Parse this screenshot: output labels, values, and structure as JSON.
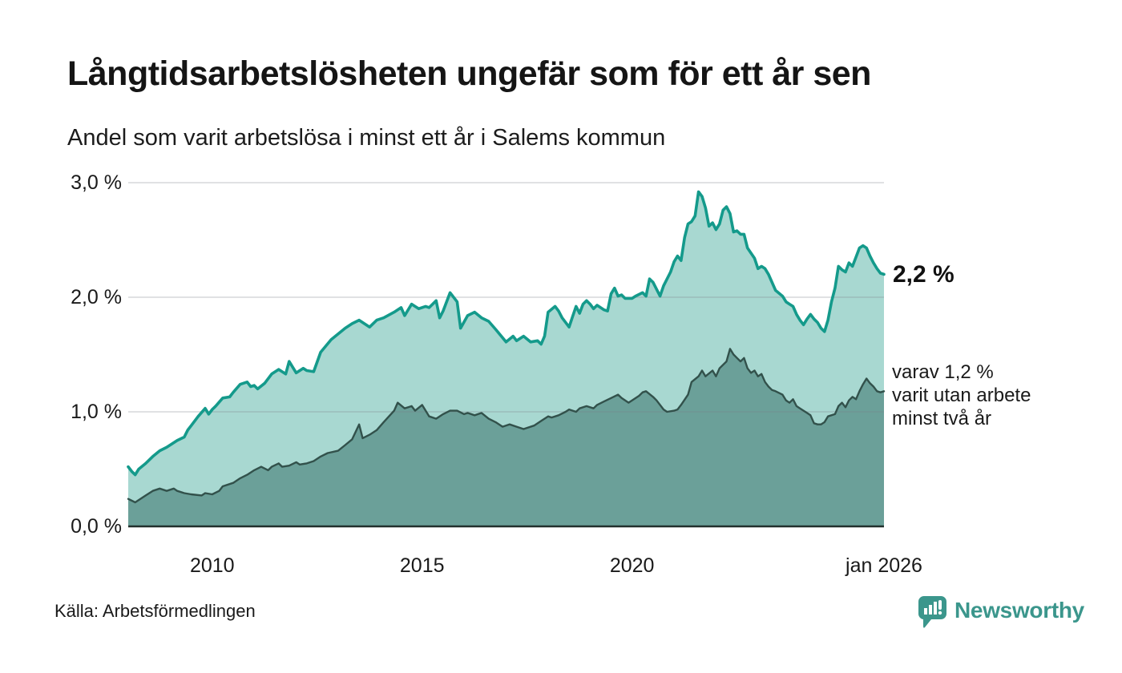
{
  "title": "Långtidsarbetslösheten ungefär som för ett år sen",
  "subtitle": "Andel som varit arbetslösa i minst ett år i Salems kommun",
  "source": "Källa: Arbetsförmedlingen",
  "logo": {
    "text": "Newsworthy",
    "color": "#3b968c"
  },
  "annotations": {
    "end_value": "2,2 %",
    "secondary": [
      "varav 1,2 %",
      "varit utan arbete",
      "minst två år"
    ]
  },
  "y_axis": {
    "labels": [
      "3,0 %",
      "2,0 %",
      "1,0 %",
      "0,0 %"
    ],
    "values": [
      3,
      2,
      1,
      0
    ]
  },
  "x_axis": {
    "ticks": [
      {
        "label": "2010",
        "month": 24
      },
      {
        "label": "2015",
        "month": 84
      },
      {
        "label": "2020",
        "month": 144
      },
      {
        "label": "jan 2026",
        "month": 216
      }
    ]
  },
  "chart_data": {
    "type": "area",
    "title": "Långtidsarbetslösheten ungefär som för ett år sen",
    "subtitle": "Andel som varit arbetslösa i minst ett år i Salems kommun",
    "x_unit": "months since Jan 2008, monthly through Jan 2026",
    "x_range": [
      0,
      216
    ],
    "ylim": [
      0,
      3.0
    ],
    "grid": true,
    "colors": {
      "line_primary": "#149a8b",
      "fill_primary": "#a8d8d1",
      "line_secondary": "#32514b",
      "fill_secondary": "#6ba099",
      "gridline": "#e3e3e8",
      "axis_line": "#22302d"
    },
    "series": [
      {
        "name": "Arbetslösa minst ett år",
        "end_label": "2,2 %",
        "points": [
          [
            0,
            0.52
          ],
          [
            1,
            0.48
          ],
          [
            2,
            0.45
          ],
          [
            3,
            0.5
          ],
          [
            5,
            0.55
          ],
          [
            7,
            0.61
          ],
          [
            9,
            0.66
          ],
          [
            11,
            0.69
          ],
          [
            14,
            0.75
          ],
          [
            16,
            0.78
          ],
          [
            17,
            0.84
          ],
          [
            18,
            0.88
          ],
          [
            20,
            0.96
          ],
          [
            22,
            1.03
          ],
          [
            23,
            0.98
          ],
          [
            24,
            1.02
          ],
          [
            25,
            1.05
          ],
          [
            27,
            1.12
          ],
          [
            29,
            1.13
          ],
          [
            30,
            1.17
          ],
          [
            32,
            1.24
          ],
          [
            34,
            1.26
          ],
          [
            35,
            1.22
          ],
          [
            36,
            1.23
          ],
          [
            37,
            1.2
          ],
          [
            39,
            1.25
          ],
          [
            41,
            1.33
          ],
          [
            43,
            1.37
          ],
          [
            45,
            1.33
          ],
          [
            46,
            1.44
          ],
          [
            48,
            1.34
          ],
          [
            50,
            1.38
          ],
          [
            51,
            1.36
          ],
          [
            53,
            1.35
          ],
          [
            55,
            1.52
          ],
          [
            58,
            1.63
          ],
          [
            62,
            1.73
          ],
          [
            64,
            1.77
          ],
          [
            66,
            1.8
          ],
          [
            69,
            1.74
          ],
          [
            71,
            1.8
          ],
          [
            73,
            1.82
          ],
          [
            76,
            1.87
          ],
          [
            78,
            1.91
          ],
          [
            79,
            1.84
          ],
          [
            81,
            1.94
          ],
          [
            83,
            1.9
          ],
          [
            85,
            1.92
          ],
          [
            86,
            1.91
          ],
          [
            88,
            1.97
          ],
          [
            89,
            1.82
          ],
          [
            90,
            1.88
          ],
          [
            92,
            2.04
          ],
          [
            94,
            1.96
          ],
          [
            95,
            1.73
          ],
          [
            97,
            1.84
          ],
          [
            99,
            1.87
          ],
          [
            101,
            1.82
          ],
          [
            103,
            1.79
          ],
          [
            105,
            1.72
          ],
          [
            108,
            1.61
          ],
          [
            110,
            1.66
          ],
          [
            111,
            1.62
          ],
          [
            113,
            1.66
          ],
          [
            115,
            1.61
          ],
          [
            117,
            1.62
          ],
          [
            118,
            1.59
          ],
          [
            119,
            1.66
          ],
          [
            120,
            1.87
          ],
          [
            122,
            1.92
          ],
          [
            123,
            1.88
          ],
          [
            124,
            1.82
          ],
          [
            126,
            1.74
          ],
          [
            127,
            1.83
          ],
          [
            128,
            1.92
          ],
          [
            129,
            1.86
          ],
          [
            130,
            1.94
          ],
          [
            131,
            1.97
          ],
          [
            132,
            1.94
          ],
          [
            133,
            1.9
          ],
          [
            134,
            1.93
          ],
          [
            136,
            1.89
          ],
          [
            137,
            1.88
          ],
          [
            138,
            2.03
          ],
          [
            139,
            2.08
          ],
          [
            140,
            2.01
          ],
          [
            141,
            2.02
          ],
          [
            142,
            1.99
          ],
          [
            144,
            1.99
          ],
          [
            145,
            2.01
          ],
          [
            147,
            2.04
          ],
          [
            148,
            2.01
          ],
          [
            149,
            2.16
          ],
          [
            150,
            2.13
          ],
          [
            152,
            2.01
          ],
          [
            153,
            2.1
          ],
          [
            155,
            2.22
          ],
          [
            156,
            2.31
          ],
          [
            157,
            2.36
          ],
          [
            158,
            2.32
          ],
          [
            159,
            2.52
          ],
          [
            160,
            2.64
          ],
          [
            161,
            2.66
          ],
          [
            162,
            2.71
          ],
          [
            163,
            2.92
          ],
          [
            164,
            2.88
          ],
          [
            165,
            2.78
          ],
          [
            166,
            2.62
          ],
          [
            167,
            2.65
          ],
          [
            168,
            2.59
          ],
          [
            169,
            2.64
          ],
          [
            170,
            2.76
          ],
          [
            171,
            2.79
          ],
          [
            172,
            2.73
          ],
          [
            173,
            2.57
          ],
          [
            174,
            2.58
          ],
          [
            175,
            2.55
          ],
          [
            176,
            2.55
          ],
          [
            177,
            2.43
          ],
          [
            179,
            2.34
          ],
          [
            180,
            2.25
          ],
          [
            181,
            2.27
          ],
          [
            182,
            2.25
          ],
          [
            183,
            2.2
          ],
          [
            184,
            2.13
          ],
          [
            185,
            2.06
          ],
          [
            187,
            2.01
          ],
          [
            188,
            1.96
          ],
          [
            189,
            1.94
          ],
          [
            190,
            1.92
          ],
          [
            191,
            1.85
          ],
          [
            192,
            1.8
          ],
          [
            193,
            1.76
          ],
          [
            194,
            1.81
          ],
          [
            195,
            1.85
          ],
          [
            196,
            1.81
          ],
          [
            197,
            1.78
          ],
          [
            198,
            1.73
          ],
          [
            199,
            1.7
          ],
          [
            200,
            1.8
          ],
          [
            201,
            1.96
          ],
          [
            202,
            2.08
          ],
          [
            203,
            2.27
          ],
          [
            204,
            2.24
          ],
          [
            205,
            2.22
          ],
          [
            206,
            2.3
          ],
          [
            207,
            2.27
          ],
          [
            208,
            2.35
          ],
          [
            209,
            2.43
          ],
          [
            210,
            2.45
          ],
          [
            211,
            2.43
          ],
          [
            212,
            2.36
          ],
          [
            213,
            2.3
          ],
          [
            214,
            2.25
          ],
          [
            215,
            2.21
          ],
          [
            216,
            2.2
          ]
        ]
      },
      {
        "name": "Varav utan arbete minst två år",
        "end_label": "varav 1,2 % varit utan arbete minst två år",
        "points": [
          [
            0,
            0.24
          ],
          [
            2,
            0.21
          ],
          [
            5,
            0.27
          ],
          [
            7,
            0.31
          ],
          [
            9,
            0.33
          ],
          [
            11,
            0.31
          ],
          [
            13,
            0.33
          ],
          [
            14,
            0.31
          ],
          [
            16,
            0.29
          ],
          [
            18,
            0.28
          ],
          [
            21,
            0.27
          ],
          [
            22,
            0.29
          ],
          [
            24,
            0.28
          ],
          [
            26,
            0.31
          ],
          [
            27,
            0.35
          ],
          [
            30,
            0.38
          ],
          [
            32,
            0.42
          ],
          [
            34,
            0.45
          ],
          [
            36,
            0.49
          ],
          [
            38,
            0.52
          ],
          [
            40,
            0.49
          ],
          [
            41,
            0.52
          ],
          [
            43,
            0.55
          ],
          [
            44,
            0.52
          ],
          [
            46,
            0.53
          ],
          [
            48,
            0.56
          ],
          [
            49,
            0.54
          ],
          [
            51,
            0.55
          ],
          [
            53,
            0.57
          ],
          [
            55,
            0.61
          ],
          [
            57,
            0.64
          ],
          [
            60,
            0.66
          ],
          [
            62,
            0.71
          ],
          [
            64,
            0.76
          ],
          [
            66,
            0.89
          ],
          [
            67,
            0.77
          ],
          [
            69,
            0.8
          ],
          [
            71,
            0.84
          ],
          [
            73,
            0.91
          ],
          [
            76,
            1.01
          ],
          [
            77,
            1.08
          ],
          [
            79,
            1.03
          ],
          [
            81,
            1.05
          ],
          [
            82,
            1.01
          ],
          [
            84,
            1.06
          ],
          [
            86,
            0.96
          ],
          [
            88,
            0.94
          ],
          [
            90,
            0.98
          ],
          [
            92,
            1.01
          ],
          [
            94,
            1.01
          ],
          [
            96,
            0.98
          ],
          [
            97,
            0.99
          ],
          [
            99,
            0.97
          ],
          [
            101,
            0.99
          ],
          [
            103,
            0.94
          ],
          [
            105,
            0.91
          ],
          [
            107,
            0.87
          ],
          [
            109,
            0.89
          ],
          [
            111,
            0.87
          ],
          [
            113,
            0.85
          ],
          [
            116,
            0.88
          ],
          [
            118,
            0.92
          ],
          [
            120,
            0.96
          ],
          [
            121,
            0.95
          ],
          [
            123,
            0.97
          ],
          [
            125,
            1.0
          ],
          [
            126,
            1.02
          ],
          [
            128,
            1.0
          ],
          [
            129,
            1.03
          ],
          [
            131,
            1.05
          ],
          [
            133,
            1.03
          ],
          [
            134,
            1.06
          ],
          [
            136,
            1.09
          ],
          [
            138,
            1.12
          ],
          [
            140,
            1.15
          ],
          [
            141,
            1.12
          ],
          [
            143,
            1.08
          ],
          [
            144,
            1.1
          ],
          [
            146,
            1.14
          ],
          [
            147,
            1.17
          ],
          [
            148,
            1.18
          ],
          [
            150,
            1.13
          ],
          [
            151,
            1.1
          ],
          [
            153,
            1.02
          ],
          [
            154,
            1.0
          ],
          [
            156,
            1.01
          ],
          [
            157,
            1.02
          ],
          [
            158,
            1.06
          ],
          [
            160,
            1.15
          ],
          [
            161,
            1.26
          ],
          [
            163,
            1.31
          ],
          [
            164,
            1.36
          ],
          [
            165,
            1.31
          ],
          [
            167,
            1.36
          ],
          [
            168,
            1.31
          ],
          [
            169,
            1.38
          ],
          [
            171,
            1.44
          ],
          [
            172,
            1.55
          ],
          [
            173,
            1.5
          ],
          [
            174,
            1.47
          ],
          [
            175,
            1.44
          ],
          [
            176,
            1.47
          ],
          [
            177,
            1.38
          ],
          [
            178,
            1.34
          ],
          [
            179,
            1.36
          ],
          [
            180,
            1.31
          ],
          [
            181,
            1.33
          ],
          [
            182,
            1.26
          ],
          [
            183,
            1.22
          ],
          [
            184,
            1.19
          ],
          [
            185,
            1.18
          ],
          [
            187,
            1.15
          ],
          [
            188,
            1.1
          ],
          [
            189,
            1.08
          ],
          [
            190,
            1.11
          ],
          [
            191,
            1.05
          ],
          [
            192,
            1.03
          ],
          [
            194,
            0.99
          ],
          [
            195,
            0.97
          ],
          [
            196,
            0.9
          ],
          [
            197,
            0.89
          ],
          [
            198,
            0.89
          ],
          [
            199,
            0.91
          ],
          [
            200,
            0.96
          ],
          [
            202,
            0.98
          ],
          [
            203,
            1.05
          ],
          [
            204,
            1.08
          ],
          [
            205,
            1.04
          ],
          [
            206,
            1.1
          ],
          [
            207,
            1.13
          ],
          [
            208,
            1.11
          ],
          [
            209,
            1.18
          ],
          [
            210,
            1.24
          ],
          [
            211,
            1.29
          ],
          [
            212,
            1.25
          ],
          [
            213,
            1.22
          ],
          [
            214,
            1.18
          ],
          [
            215,
            1.17
          ],
          [
            216,
            1.18
          ]
        ]
      }
    ],
    "legend_position": "right-edge annotations"
  }
}
